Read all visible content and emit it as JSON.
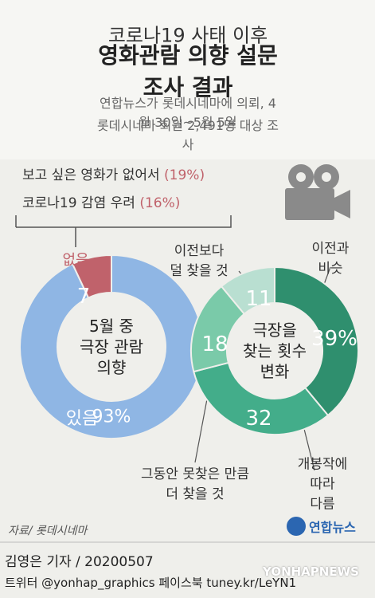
{
  "header": {
    "title_line1": "코로나19 사태 이후",
    "title_line2": "영화관람 의향 설문조사 결과",
    "subtitle_line1": "연합뉴스가 롯데시네마에 의뢰, 4월 30일~5월 5일",
    "subtitle_line2": "롯데시네마 회원 2,491명 대상 조사"
  },
  "reasons": [
    {
      "text": "보고 싶은 영화가 없어서",
      "percent": "(19%)"
    },
    {
      "text": "코로나19 감염 우려",
      "percent": "(16%)"
    }
  ],
  "chart_data": [
    {
      "type": "donut",
      "center_label": "5월 중\n극장 관람\n의향",
      "categories": [
        "있음",
        "없음"
      ],
      "values": [
        93,
        7
      ],
      "value_labels": [
        "93%",
        "7"
      ],
      "colors": [
        "#8fb6e4",
        "#c0626b"
      ]
    },
    {
      "type": "donut",
      "center_label": "극장을\n찾는 횟수\n변화",
      "categories": [
        "이전과 비슷",
        "개봉작에 따라\n다름",
        "그동안 못찾은 만큼\n더 찾을 것",
        "이전보다\n덜 찾을 것"
      ],
      "values": [
        39,
        32,
        18,
        11
      ],
      "value_labels": [
        "39%",
        "32",
        "18",
        "11"
      ],
      "colors": [
        "#2f8f6e",
        "#43ad8a",
        "#7acaa9",
        "#b9dfd1"
      ]
    }
  ],
  "footer": {
    "source": "자료/ 롯데시네마",
    "logo": "연합뉴스",
    "byline": "김영은 기자 / 20200507",
    "social": "트위터 @yonhap_graphics  페이스북 tuney.kr/LeYN1",
    "watermark": "YONHAPNEWS"
  }
}
